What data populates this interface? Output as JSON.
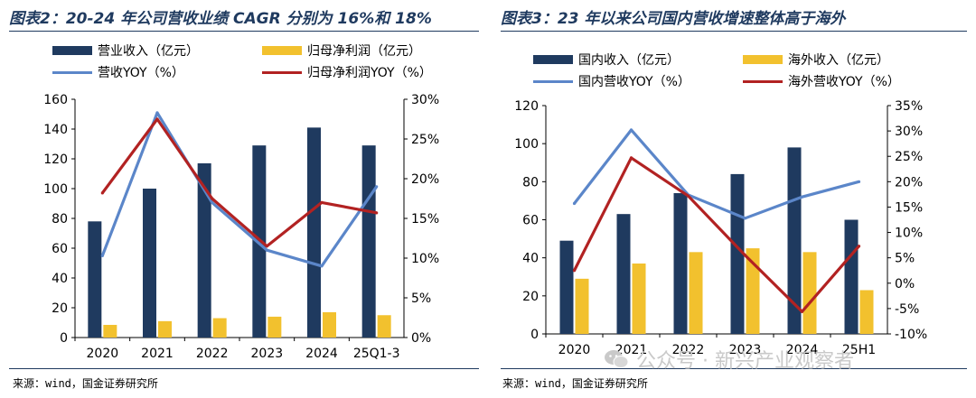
{
  "charts": [
    {
      "title": "图表2：20-24 年公司营收业绩 CAGR 分别为 16%和 18%",
      "source": "来源：wind，国金证券研究所"
    },
    {
      "title": "图表3：23 年以来公司国内营收增速整体高于海外",
      "source": "来源：wind，国金证券研究所"
    }
  ],
  "watermark": "公众号 · 新兴产业观察者",
  "colors": {
    "bar1": "#1f3a5f",
    "bar2": "#f2c12e",
    "line1": "#5b86c9",
    "line2": "#b22222"
  },
  "chart_data": [
    {
      "type": "bar",
      "title": "图表2：20-24 年公司营收业绩 CAGR 分别为 16%和 18%",
      "categories": [
        "2020",
        "2021",
        "2022",
        "2023",
        "2024",
        "25Q1-3"
      ],
      "ylim": [
        0,
        160
      ],
      "yticks": [
        "0",
        "20",
        "40",
        "60",
        "80",
        "100",
        "120",
        "140",
        "160"
      ],
      "y2lim": [
        0,
        30
      ],
      "y2ticks": [
        "0%",
        "5%",
        "10%",
        "15%",
        "20%",
        "25%",
        "30%"
      ],
      "series": [
        {
          "name": "营业收入（亿元）",
          "kind": "bar",
          "axis": "left",
          "values": [
            78,
            100,
            117,
            129,
            141,
            129
          ]
        },
        {
          "name": "归母净利润（亿元）",
          "kind": "bar",
          "axis": "left",
          "values": [
            8.5,
            11,
            13,
            14,
            17,
            15
          ]
        },
        {
          "name": "营收YOY（%）",
          "kind": "line",
          "axis": "right",
          "values": [
            10.3,
            28.3,
            17.0,
            11.0,
            9.0,
            19.0
          ]
        },
        {
          "name": "归母净利润YOY（%）",
          "kind": "line",
          "axis": "right",
          "values": [
            18.2,
            27.5,
            17.5,
            11.5,
            17.0,
            15.7
          ]
        }
      ]
    },
    {
      "type": "bar",
      "title": "图表3：23 年以来公司国内营收增速整体高于海外",
      "categories": [
        "2020",
        "2021",
        "2022",
        "2023",
        "2024",
        "25H1"
      ],
      "ylim": [
        0,
        120
      ],
      "yticks": [
        "0",
        "20",
        "40",
        "60",
        "80",
        "100",
        "120"
      ],
      "y2lim": [
        -10,
        35
      ],
      "y2ticks": [
        "-10%",
        "-5%",
        "0%",
        "5%",
        "10%",
        "15%",
        "20%",
        "25%",
        "30%",
        "35%"
      ],
      "series": [
        {
          "name": "国内收入（亿元）",
          "kind": "bar",
          "axis": "left",
          "values": [
            49,
            63,
            74,
            84,
            98,
            60
          ]
        },
        {
          "name": "海外收入（亿元）",
          "kind": "bar",
          "axis": "left",
          "values": [
            29,
            37,
            43,
            45,
            43,
            23
          ]
        },
        {
          "name": "国内营收YOY（%）",
          "kind": "line",
          "axis": "right",
          "values": [
            15.7,
            30.2,
            17.4,
            12.8,
            17.0,
            20.0
          ]
        },
        {
          "name": "海外营收YOY（%）",
          "kind": "line",
          "axis": "right",
          "values": [
            2.5,
            24.7,
            17.2,
            5.5,
            -5.6,
            7.3
          ]
        }
      ]
    }
  ]
}
